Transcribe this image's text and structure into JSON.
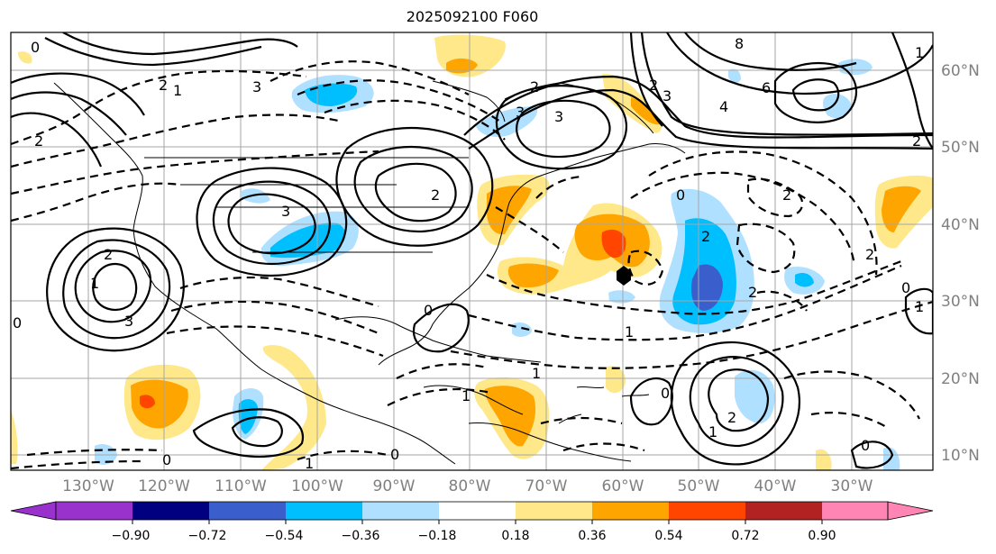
{
  "title": "2025092100 F060",
  "map": {
    "lon_labels": [
      "130°W",
      "120°W",
      "110°W",
      "100°W",
      "90°W",
      "80°W",
      "70°W",
      "60°W",
      "50°W",
      "40°W",
      "30°W"
    ],
    "lat_labels": [
      "60°N",
      "50°N",
      "40°N",
      "30°N",
      "20°N",
      "10°N"
    ],
    "contour_labels": [
      "0",
      "2",
      "1",
      "3",
      "2",
      "3",
      "2",
      "3",
      "4",
      "8",
      "6",
      "2",
      "0",
      "1",
      "2",
      "3",
      "1",
      "0",
      "2",
      "3",
      "0",
      "1",
      "2",
      "2",
      "0",
      "3",
      "2",
      "1",
      "0",
      "1",
      "2",
      "2",
      "1",
      "0",
      "0",
      "1",
      "0",
      "2",
      "1"
    ]
  },
  "colorbar": {
    "ticks": [
      "−0.90",
      "−0.72",
      "−0.54",
      "−0.36",
      "−0.18",
      "0.18",
      "0.36",
      "0.54",
      "0.72",
      "0.90"
    ],
    "colors": {
      "under": "#9932cc",
      "c1": "#000080",
      "c2": "#3a5fcd",
      "c3": "#00bfff",
      "c4": "#b0e0ff",
      "c5": "#ffffff",
      "c6": "#ffe88a",
      "c7": "#ffa500",
      "c8": "#ff4500",
      "c9": "#b22222",
      "over": "#ff85b5"
    }
  },
  "colors": {
    "grid": "#a6a6a6",
    "contour": "#000000",
    "coast": "#000000",
    "marker": "#000000"
  }
}
